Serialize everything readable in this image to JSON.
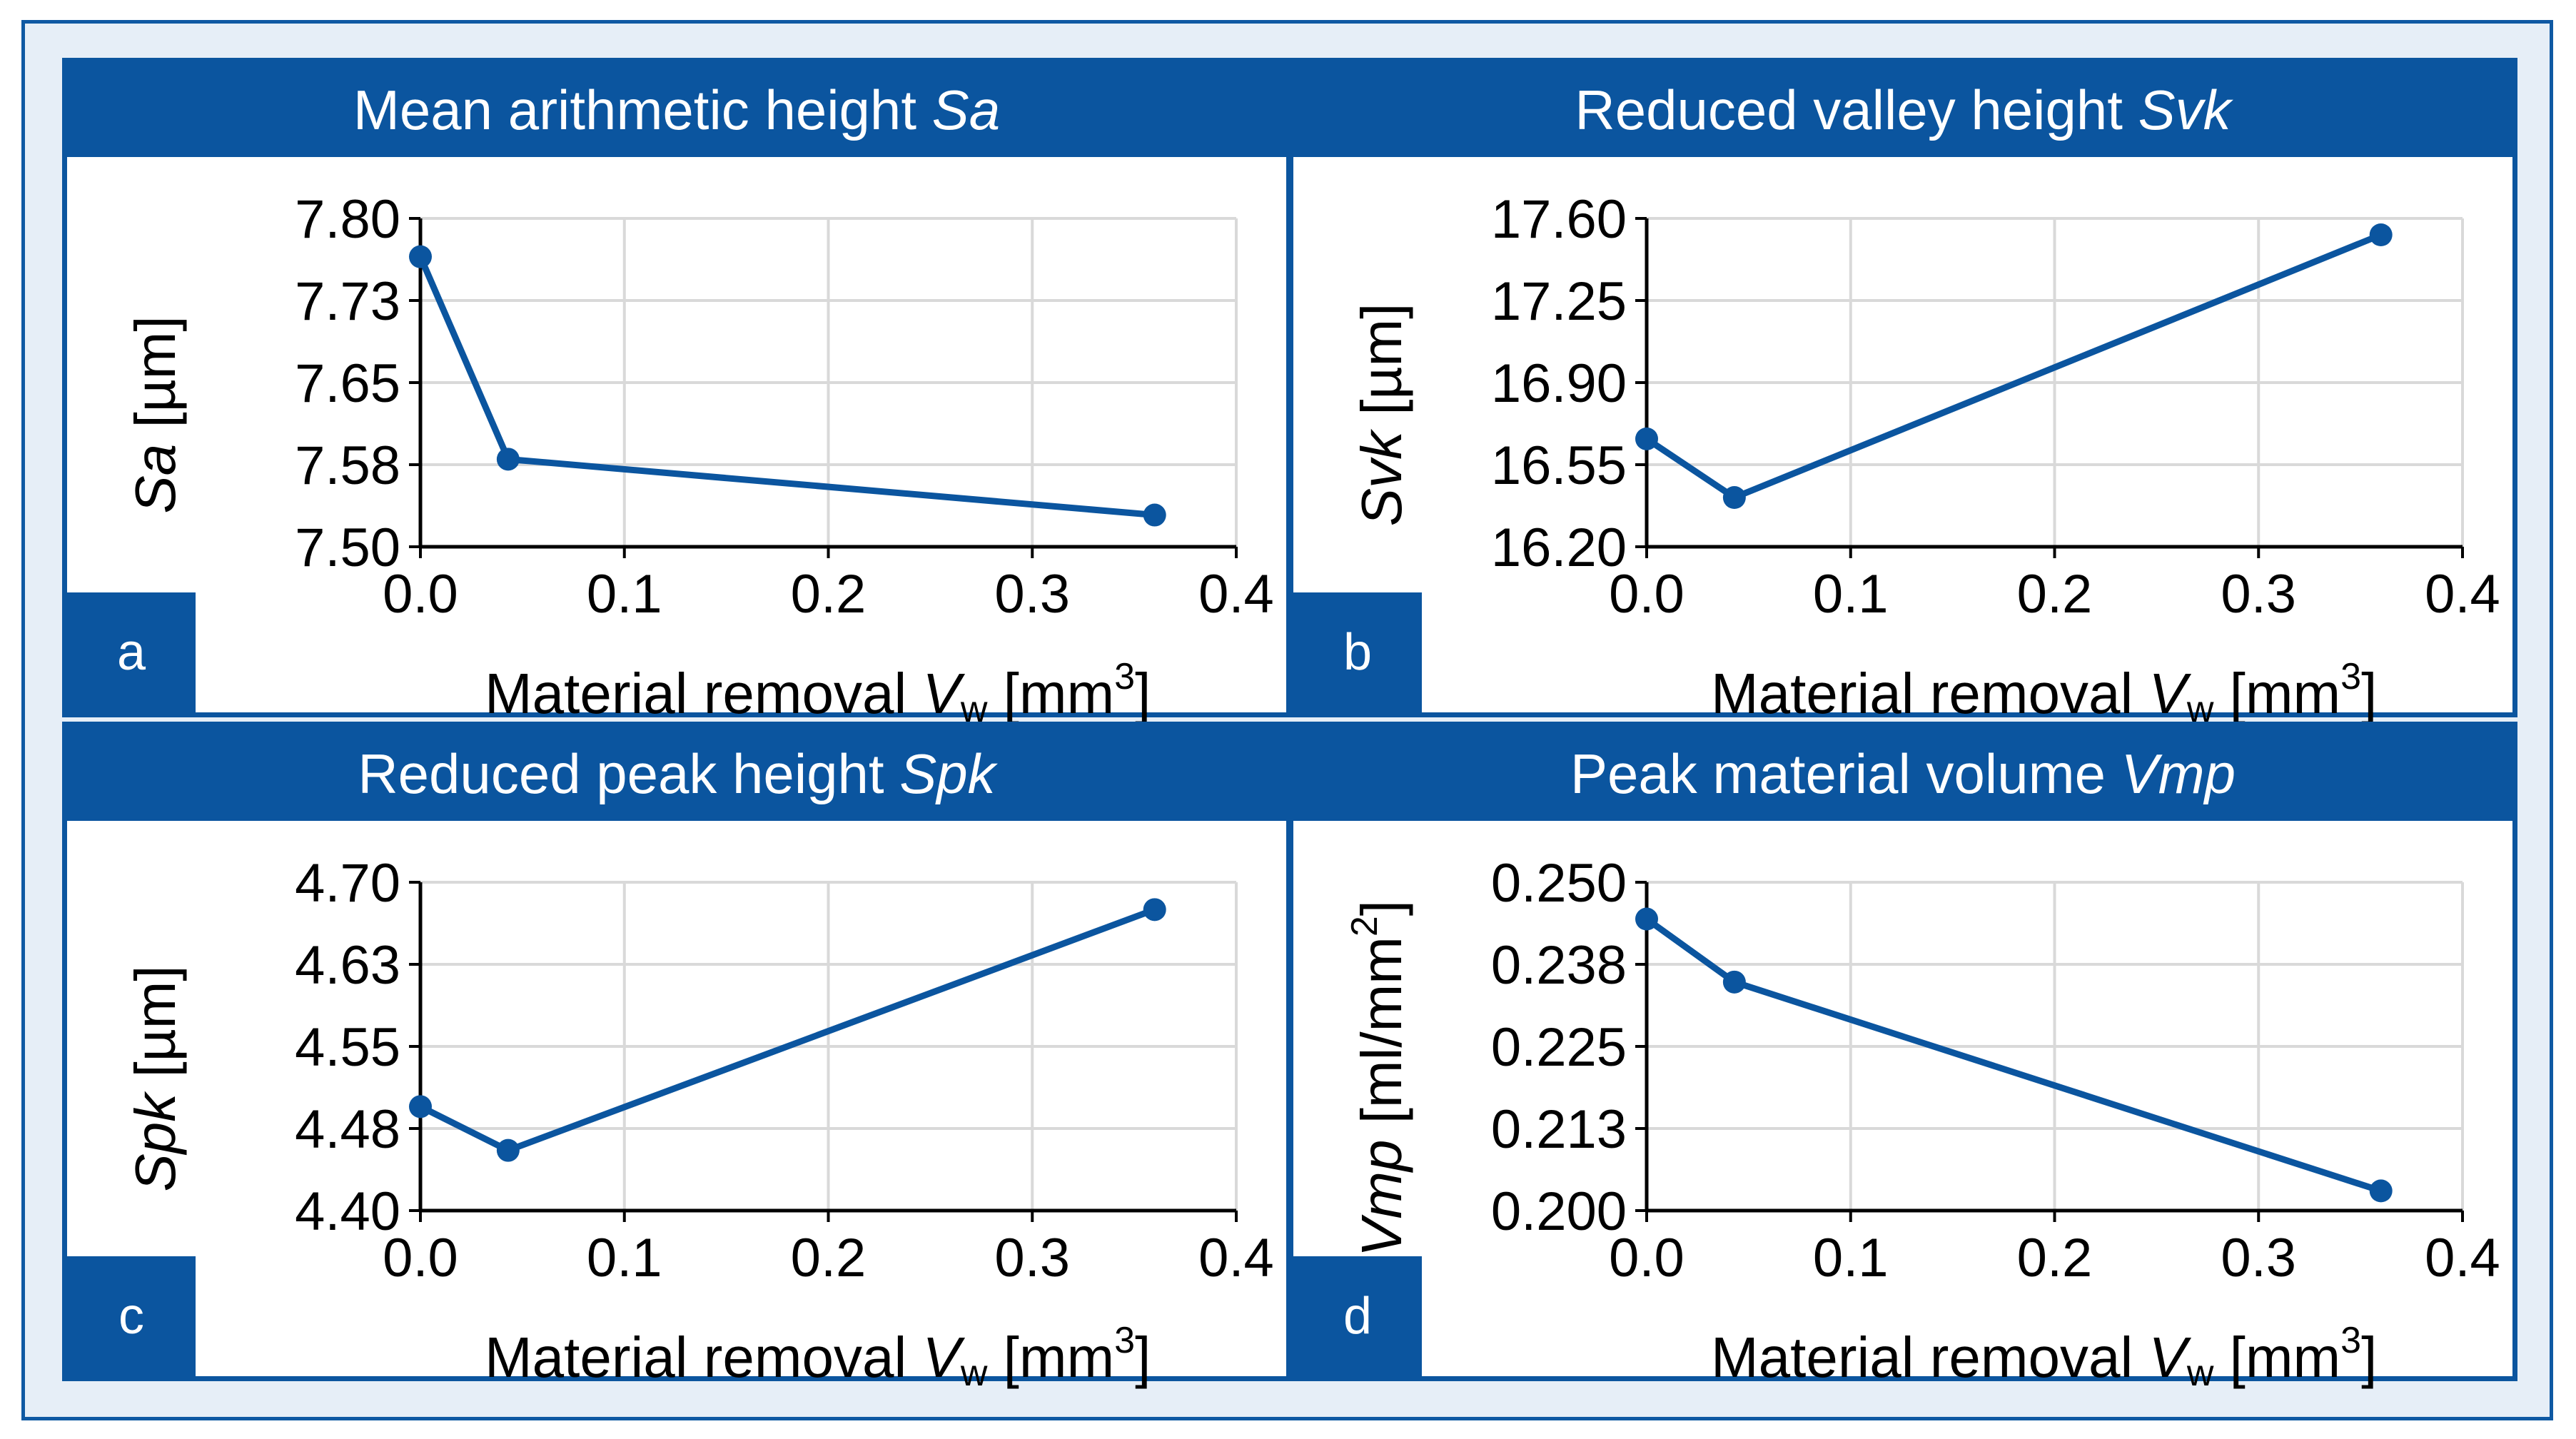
{
  "figure": {
    "frame_color": "#0f59a3",
    "header_color": "#0b559f",
    "line_color": "#0b559f",
    "grid_color": "#d9d9d9"
  },
  "panels": [
    {
      "tag": "a",
      "title_text": "Mean arithmetic height ",
      "title_var": "Sa",
      "xlabel_text": "Material removal ",
      "xlabel_var": "V",
      "xlabel_sub": "w",
      "xlabel_unit_open": " [mm",
      "xlabel_unit_sup": "3",
      "xlabel_unit_close": "]",
      "ylabel_var": "Sa",
      "ylabel_unit": " [µm]",
      "ylabel_unit_sup": "",
      "ylabel_unit_close": ""
    },
    {
      "tag": "b",
      "title_text": "Reduced valley height ",
      "title_var": "Svk",
      "xlabel_text": "Material removal ",
      "xlabel_var": "V",
      "xlabel_sub": "w",
      "xlabel_unit_open": " [mm",
      "xlabel_unit_sup": "3",
      "xlabel_unit_close": "]",
      "ylabel_var": "Svk",
      "ylabel_unit": " [µm]",
      "ylabel_unit_sup": "",
      "ylabel_unit_close": ""
    },
    {
      "tag": "c",
      "title_text": "Reduced peak height ",
      "title_var": "Spk",
      "xlabel_text": "Material removal ",
      "xlabel_var": "V",
      "xlabel_sub": "w",
      "xlabel_unit_open": " [mm",
      "xlabel_unit_sup": "3",
      "xlabel_unit_close": "]",
      "ylabel_var": "Spk",
      "ylabel_unit": " [µm]",
      "ylabel_unit_sup": "",
      "ylabel_unit_close": ""
    },
    {
      "tag": "d",
      "title_text": "Peak material volume ",
      "title_var": "Vmp",
      "xlabel_text": "Material removal ",
      "xlabel_var": "V",
      "xlabel_sub": "w",
      "xlabel_unit_open": " [mm",
      "xlabel_unit_sup": "3",
      "xlabel_unit_close": "]",
      "ylabel_var": "Vmp",
      "ylabel_unit": " [ml/mm",
      "ylabel_unit_sup": "2",
      "ylabel_unit_close": "]"
    }
  ],
  "chart_data": [
    {
      "type": "line",
      "title": "Mean arithmetic height Sa",
      "xlabel": "Material removal Vw [mm3]",
      "ylabel": "Sa [µm]",
      "x": [
        0.0,
        0.043,
        0.36
      ],
      "y": [
        7.765,
        7.58,
        7.529
      ],
      "xlim": [
        0,
        0.4
      ],
      "ylim": [
        7.5,
        7.8
      ],
      "xticks": [
        "0.0",
        "0.1",
        "0.2",
        "0.3",
        "0.4"
      ],
      "yticks": [
        "7.50",
        "7.58",
        "7.65",
        "7.73",
        "7.80"
      ],
      "grid": true
    },
    {
      "type": "line",
      "title": "Reduced valley height Svk",
      "xlabel": "Material removal Vw [mm3]",
      "ylabel": "Svk [µm]",
      "x": [
        0.0,
        0.043,
        0.36
      ],
      "y": [
        16.66,
        16.41,
        17.53
      ],
      "xlim": [
        0,
        0.4
      ],
      "ylim": [
        16.2,
        17.6
      ],
      "xticks": [
        "0.0",
        "0.1",
        "0.2",
        "0.3",
        "0.4"
      ],
      "yticks": [
        "16.20",
        "16.55",
        "16.90",
        "17.25",
        "17.60"
      ],
      "grid": true
    },
    {
      "type": "line",
      "title": "Reduced peak height Spk",
      "xlabel": "Material removal Vw [mm3]",
      "ylabel": "Spk [µm]",
      "x": [
        0.0,
        0.043,
        0.36
      ],
      "y": [
        4.495,
        4.455,
        4.675
      ],
      "xlim": [
        0,
        0.4
      ],
      "ylim": [
        4.4,
        4.7
      ],
      "xticks": [
        "0.0",
        "0.1",
        "0.2",
        "0.3",
        "0.4"
      ],
      "yticks": [
        "4.40",
        "4.48",
        "4.55",
        "4.63",
        "4.70"
      ],
      "grid": true
    },
    {
      "type": "line",
      "title": "Peak material volume Vmp",
      "xlabel": "Material removal Vw [mm3]",
      "ylabel": "Vmp [ml/mm2]",
      "x": [
        0.0,
        0.043,
        0.36
      ],
      "y": [
        0.2444,
        0.2348,
        0.203
      ],
      "xlim": [
        0,
        0.4
      ],
      "ylim": [
        0.2,
        0.25
      ],
      "xticks": [
        "0.0",
        "0.1",
        "0.2",
        "0.3",
        "0.4"
      ],
      "yticks": [
        "0.200",
        "0.213",
        "0.225",
        "0.238",
        "0.250"
      ],
      "grid": true
    }
  ]
}
